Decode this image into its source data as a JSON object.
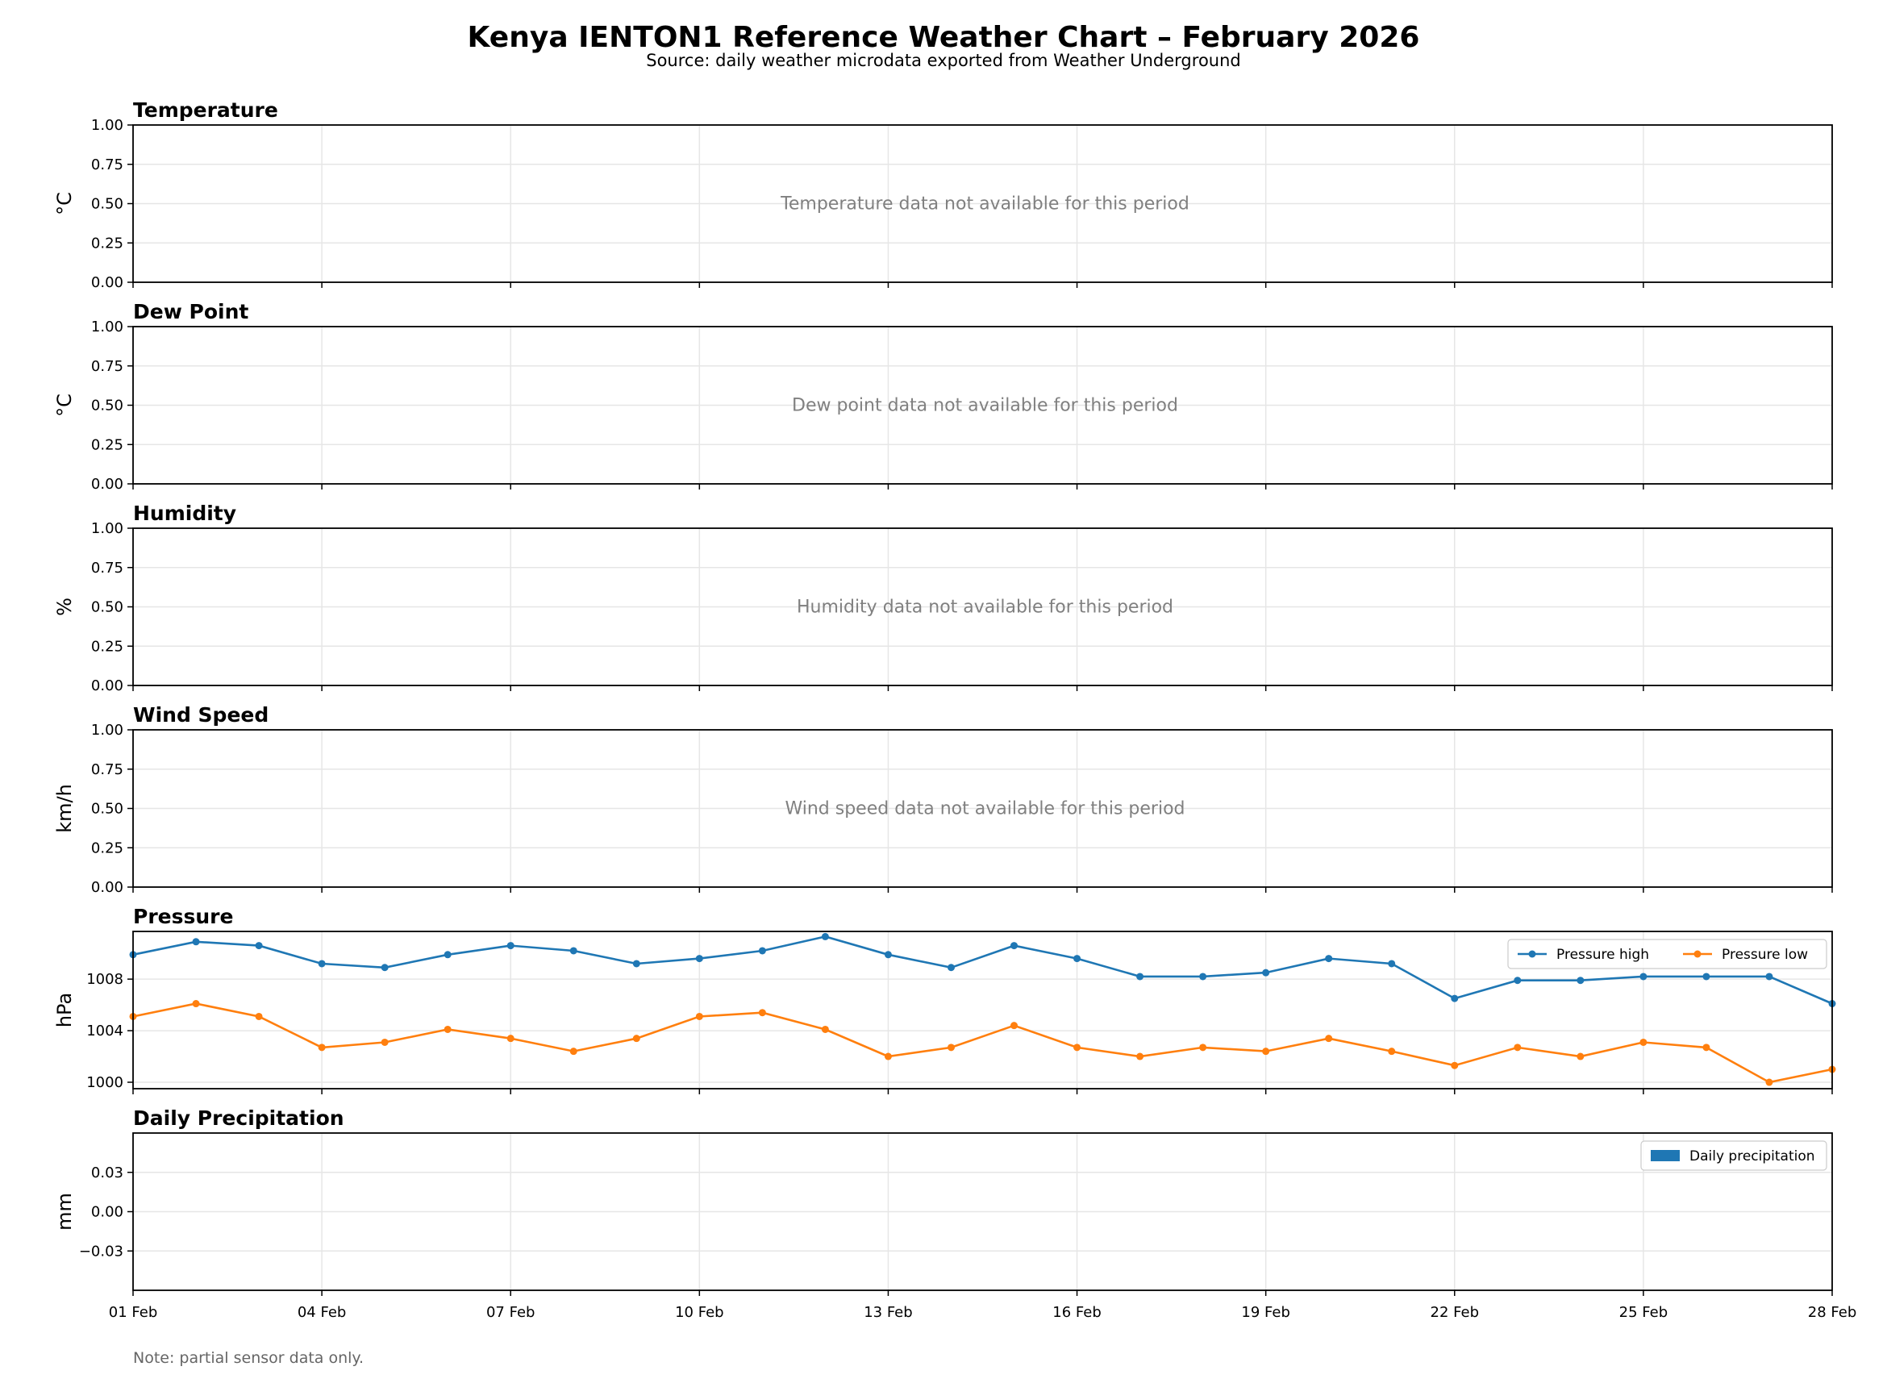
{
  "title": "Kenya IENTON1 Reference Weather Chart – February 2026",
  "subtitle": "Source: daily weather microdata exported from Weather Underground",
  "note": "Note: partial sensor data only.",
  "colors": {
    "pressure_high": "#1f77b4",
    "pressure_low": "#ff7f0e",
    "precipitation": "#1f77b4",
    "grid": "#e6e6e6",
    "na_text": "#808080"
  },
  "x_axis": {
    "dates": [
      "01 Feb",
      "02 Feb",
      "03 Feb",
      "04 Feb",
      "05 Feb",
      "06 Feb",
      "07 Feb",
      "08 Feb",
      "09 Feb",
      "10 Feb",
      "11 Feb",
      "12 Feb",
      "13 Feb",
      "14 Feb",
      "15 Feb",
      "16 Feb",
      "17 Feb",
      "18 Feb",
      "19 Feb",
      "20 Feb",
      "21 Feb",
      "22 Feb",
      "23 Feb",
      "24 Feb",
      "25 Feb",
      "26 Feb",
      "27 Feb",
      "28 Feb"
    ],
    "tick_labels": [
      "01 Feb",
      "04 Feb",
      "07 Feb",
      "10 Feb",
      "13 Feb",
      "16 Feb",
      "19 Feb",
      "22 Feb",
      "25 Feb",
      "28 Feb"
    ]
  },
  "chart_data": [
    {
      "type": "line",
      "title": "Temperature",
      "ylabel": "°C",
      "ylim": [
        0,
        1
      ],
      "yticks": [
        "0.00",
        "0.25",
        "0.50",
        "0.75",
        "1.00"
      ],
      "grid": true,
      "message": "Temperature data not available for this period",
      "series": []
    },
    {
      "type": "line",
      "title": "Dew Point",
      "ylabel": "°C",
      "ylim": [
        0,
        1
      ],
      "yticks": [
        "0.00",
        "0.25",
        "0.50",
        "0.75",
        "1.00"
      ],
      "grid": true,
      "message": "Dew point data not available for this period",
      "series": []
    },
    {
      "type": "line",
      "title": "Humidity",
      "ylabel": "%",
      "ylim": [
        0,
        1
      ],
      "yticks": [
        "0.00",
        "0.25",
        "0.50",
        "0.75",
        "1.00"
      ],
      "grid": true,
      "message": "Humidity data not available for this period",
      "series": []
    },
    {
      "type": "line",
      "title": "Wind Speed",
      "ylabel": "km/h",
      "ylim": [
        0,
        1
      ],
      "yticks": [
        "0.00",
        "0.25",
        "0.50",
        "0.75",
        "1.00"
      ],
      "grid": true,
      "message": "Wind speed data not available for this period",
      "series": []
    },
    {
      "type": "line",
      "title": "Pressure",
      "ylabel": "hPa",
      "ylim": [
        999.5,
        1011.7
      ],
      "yticks": [
        "1000",
        "1004",
        "1008"
      ],
      "grid": true,
      "legend": "top-right",
      "series": [
        {
          "name": "Pressure high",
          "values": [
            1009.9,
            1010.9,
            1010.6,
            1009.2,
            1008.9,
            1009.9,
            1010.6,
            1010.2,
            1009.2,
            1009.6,
            1010.2,
            1011.3,
            1009.9,
            1008.9,
            1010.6,
            1009.6,
            1008.2,
            1008.2,
            1008.5,
            1009.6,
            1009.2,
            1006.5,
            1007.9,
            1007.9,
            1008.2,
            1008.2,
            1008.2,
            1006.1
          ]
        },
        {
          "name": "Pressure low",
          "values": [
            1005.1,
            1006.1,
            1005.1,
            1002.7,
            1003.1,
            1004.1,
            1003.4,
            1002.4,
            1003.4,
            1005.1,
            1005.4,
            1004.1,
            1002.0,
            1002.7,
            1004.4,
            1002.7,
            1002.0,
            1002.7,
            1002.4,
            1003.4,
            1002.4,
            1001.3,
            1002.7,
            1002.0,
            1003.1,
            1002.7,
            1000.0,
            1001.0
          ]
        }
      ]
    },
    {
      "type": "bar",
      "title": "Daily Precipitation",
      "ylabel": "mm",
      "ylim": [
        -0.06,
        0.06
      ],
      "yticks": [
        "−0.03",
        "0.00",
        "0.03"
      ],
      "ytick_values": [
        -0.03,
        0,
        0.03
      ],
      "grid": true,
      "legend": "top-right",
      "series": [
        {
          "name": "Daily precipitation",
          "values": []
        }
      ]
    }
  ]
}
